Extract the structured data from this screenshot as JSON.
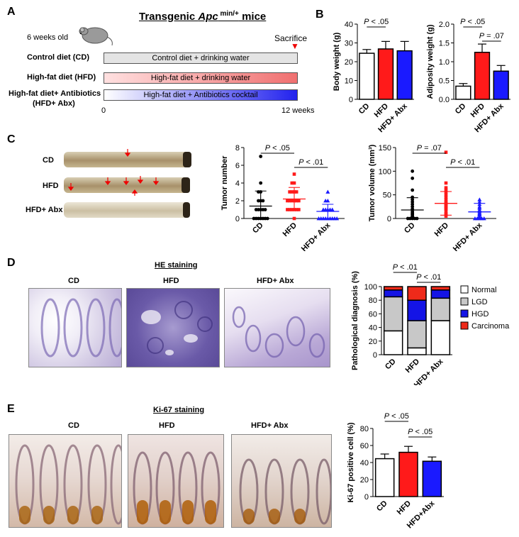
{
  "panelA": {
    "letter": "A",
    "title_prefix": "Transgenic ",
    "title_gene": "Apc",
    "title_sup": " min/+",
    "title_suffix": " mice",
    "age": "6 weeks old",
    "sacrifice": "Sacrifice",
    "start_label": "0",
    "end_label": "12 weeks",
    "groups": [
      {
        "label": "Control diet (CD)",
        "bar_text": "Control diet + drinking water"
      },
      {
        "label": "High-fat diet (HFD)",
        "bar_text": "High-fat diet + drinking water"
      },
      {
        "label": "High-fat diet+ Antibiotics",
        "label2": "(HFD+ Abx)",
        "bar_text": "High-fat diet + Antibiotics cocktail"
      }
    ]
  },
  "panelB": {
    "letter": "B"
  },
  "panelC": {
    "letter": "C",
    "colon_labels": [
      "CD",
      "HFD",
      "HFD+ Abx"
    ]
  },
  "panelD": {
    "letter": "D",
    "stain_title": "HE staining",
    "image_labels": [
      "CD",
      "HFD",
      "HFD+ Abx"
    ]
  },
  "panelE": {
    "letter": "E",
    "stain_title": "Ki-67 staining",
    "image_labels": [
      "CD",
      "HFD",
      "HFD+ Abx"
    ]
  },
  "colors": {
    "CD": "#ffffff",
    "HFD": "#ff1a1a",
    "Abx": "#1a1aff",
    "HGD": "#1414e6",
    "Carcinoma": "#ee2a1a",
    "LGD": "#c8c8c8"
  },
  "chart_data": [
    {
      "id": "body-weight",
      "type": "bar",
      "categories": [
        "CD",
        "HFD",
        "HFD+ Abx"
      ],
      "values": [
        24.5,
        26.8,
        25.8
      ],
      "errors": [
        2.0,
        4.0,
        5.0
      ],
      "ylabel": "Body weight (g)",
      "ylim": [
        0,
        40
      ],
      "yticks": [
        0,
        10,
        20,
        30,
        40
      ],
      "annotations": [
        {
          "text": "P < .05",
          "from": 0,
          "to": 1
        }
      ]
    },
    {
      "id": "adiposity-weight",
      "type": "bar",
      "categories": [
        "CD",
        "HFD",
        "HFD+ Abx"
      ],
      "values": [
        0.35,
        1.25,
        0.75
      ],
      "errors": [
        0.07,
        0.22,
        0.15
      ],
      "ylabel": "Adiposity weight (g)",
      "ylim": [
        0,
        2.0
      ],
      "yticks": [
        0.0,
        0.5,
        1.0,
        1.5,
        2.0
      ],
      "annotations": [
        {
          "text": "P < .05",
          "from": 0,
          "to": 1
        },
        {
          "text": "P = .07",
          "from": 1,
          "to": 2
        }
      ]
    },
    {
      "id": "tumor-number",
      "type": "scatter",
      "categories": [
        "CD",
        "HFD",
        "HFD+ Abx"
      ],
      "points": [
        [
          0,
          0,
          0,
          0,
          0,
          0,
          0,
          1,
          1,
          1,
          1,
          1,
          2,
          2,
          2,
          3,
          3,
          4,
          7
        ],
        [
          0,
          1,
          1,
          1,
          1,
          1,
          1,
          2,
          2,
          2,
          2,
          2,
          2,
          3,
          3,
          3,
          3,
          4,
          4,
          5
        ],
        [
          0,
          0,
          0,
          0,
          0,
          0,
          0,
          0,
          0,
          1,
          1,
          1,
          1,
          1,
          2,
          2,
          3
        ]
      ],
      "means": [
        1.4,
        2.2,
        0.8
      ],
      "sds": [
        1.7,
        1.3,
        0.8
      ],
      "ylabel": "Tumor number",
      "ylim": [
        0,
        8
      ],
      "yticks": [
        0,
        2,
        4,
        6,
        8
      ],
      "annotations": [
        {
          "text": "P < .05",
          "from": 0,
          "to": 1
        },
        {
          "text": "P < .01",
          "from": 1,
          "to": 2
        }
      ]
    },
    {
      "id": "tumor-volume",
      "type": "scatter",
      "categories": [
        "CD",
        "HFD",
        "HFD+ Abx"
      ],
      "points": [
        [
          0,
          0,
          0,
          0,
          0,
          2,
          3,
          5,
          8,
          10,
          12,
          15,
          20,
          25,
          30,
          35,
          40,
          45,
          60,
          85,
          100
        ],
        [
          5,
          8,
          10,
          15,
          20,
          22,
          25,
          28,
          30,
          32,
          35,
          40,
          45,
          50,
          55,
          60,
          65,
          75,
          140
        ],
        [
          0,
          0,
          0,
          0,
          0,
          1,
          2,
          3,
          5,
          8,
          10,
          12,
          15,
          18,
          22,
          25,
          30,
          35,
          40
        ]
      ],
      "means": [
        18,
        32,
        14
      ],
      "sds": [
        26,
        25,
        18
      ],
      "ylabel": "Tumor volume (mm³)",
      "ylim": [
        0,
        150
      ],
      "yticks": [
        0,
        50,
        100,
        150
      ],
      "annotations": [
        {
          "text": "P = .07",
          "from": 0,
          "to": 1
        },
        {
          "text": "P < .01",
          "from": 1,
          "to": 2
        }
      ]
    },
    {
      "id": "pathological-diagnosis",
      "type": "bar",
      "stacked": true,
      "categories": [
        "CD",
        "HFD",
        "HFD+ Abx"
      ],
      "series": [
        {
          "name": "Normal",
          "values": [
            35,
            10,
            50
          ]
        },
        {
          "name": "LGD",
          "values": [
            50,
            40,
            33
          ]
        },
        {
          "name": "HGD",
          "values": [
            10,
            30,
            12
          ]
        },
        {
          "name": "Carcinoma",
          "values": [
            5,
            20,
            5
          ]
        }
      ],
      "ylabel": "Pathological diagnosis (%)",
      "ylim": [
        0,
        100
      ],
      "yticks": [
        0,
        20,
        40,
        60,
        80,
        100
      ],
      "legend": "right",
      "annotations": [
        {
          "text": "P < .01",
          "from": 0,
          "to": 1
        },
        {
          "text": "P < .01",
          "from": 1,
          "to": 2
        }
      ]
    },
    {
      "id": "ki67-positive",
      "type": "bar",
      "categories": [
        "CD",
        "HFD",
        "HFD+Abx"
      ],
      "values": [
        44.5,
        52,
        41.5
      ],
      "errors": [
        5.5,
        7,
        5
      ],
      "ylabel": "Ki-67 positive cell (%)",
      "ylim": [
        0,
        80
      ],
      "yticks": [
        0,
        20,
        40,
        60,
        80
      ],
      "annotations": [
        {
          "text": "P < .05",
          "from": 0,
          "to": 1
        },
        {
          "text": "P < .05",
          "from": 1,
          "to": 2
        }
      ]
    }
  ]
}
